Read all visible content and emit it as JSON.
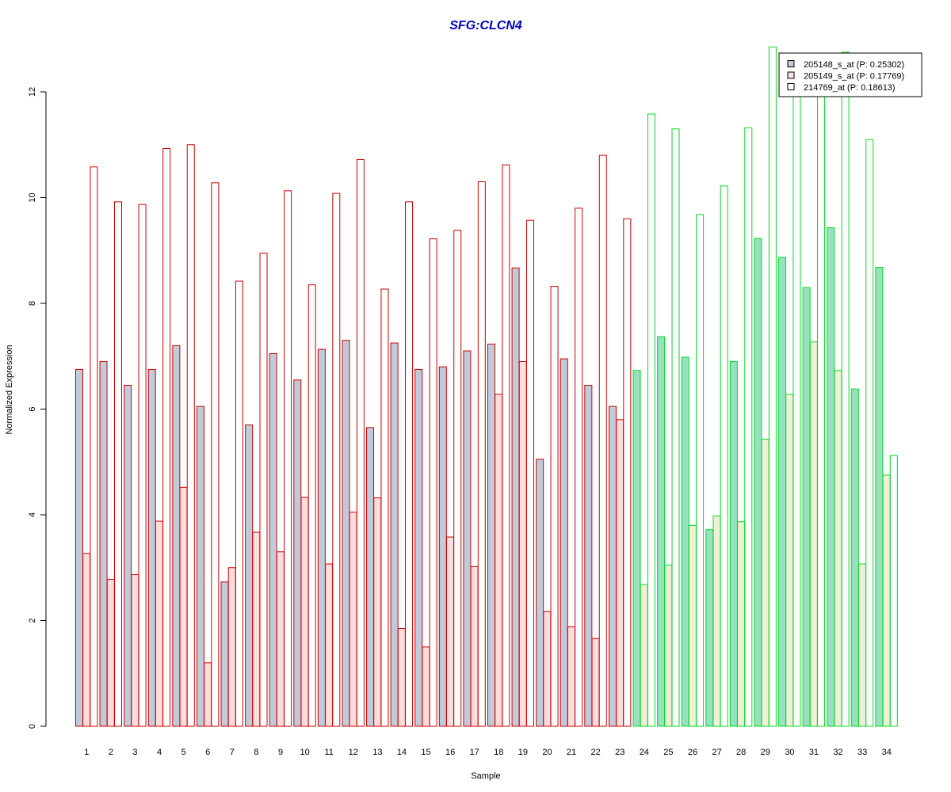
{
  "chart_data": {
    "type": "bar",
    "title": "SFG:CLCN4",
    "xlabel": "Sample",
    "ylabel": "Normalized Expression",
    "ylim": [
      0,
      13
    ],
    "yticks": [
      0,
      2,
      4,
      6,
      8,
      10,
      12
    ],
    "grid": false,
    "legend_position": "top-right",
    "categories": [
      "1",
      "2",
      "3",
      "4",
      "5",
      "6",
      "7",
      "8",
      "9",
      "10",
      "11",
      "12",
      "13",
      "14",
      "15",
      "16",
      "17",
      "18",
      "19",
      "20",
      "21",
      "22",
      "23",
      "24",
      "25",
      "26",
      "27",
      "28",
      "29",
      "30",
      "31",
      "32",
      "33",
      "34"
    ],
    "group_split_after": 23,
    "group_colors": {
      "group1": {
        "stroke": "#cc0000",
        "fills": [
          "#bfcbdb",
          "#ffdddd",
          "#ffffff"
        ]
      },
      "group2": {
        "stroke": "#00dd22",
        "fills": [
          "#99e0c0",
          "#f0f0d8",
          "#ffffff"
        ]
      }
    },
    "series": [
      {
        "name": "205148_s_at (P: 0.25302)",
        "legend_fill": "#bfcbdb",
        "values": [
          6.75,
          6.9,
          6.45,
          6.75,
          7.2,
          6.05,
          2.73,
          5.7,
          7.05,
          6.55,
          7.13,
          7.3,
          5.65,
          7.25,
          6.75,
          6.8,
          7.1,
          7.23,
          8.67,
          5.05,
          6.95,
          6.45,
          6.05,
          6.73,
          7.37,
          6.98,
          3.72,
          6.9,
          9.23,
          8.87,
          8.3,
          9.43,
          6.38,
          8.68
        ]
      },
      {
        "name": "205149_s_at (P: 0.17769)",
        "legend_fill": "#ffdddd",
        "values": [
          3.27,
          2.78,
          2.87,
          3.88,
          4.52,
          1.2,
          3.0,
          3.67,
          3.3,
          4.33,
          3.07,
          4.05,
          4.32,
          1.85,
          1.5,
          3.58,
          3.02,
          6.28,
          6.9,
          2.17,
          1.88,
          1.66,
          5.8,
          2.68,
          3.05,
          3.8,
          3.98,
          3.87,
          5.43,
          6.28,
          7.27,
          6.73,
          3.07,
          4.75
        ]
      },
      {
        "name": "214769_at (P: 0.18613)",
        "legend_fill": "#ffffff",
        "values": [
          10.58,
          9.92,
          9.87,
          10.93,
          11.0,
          10.28,
          8.42,
          8.95,
          10.13,
          8.35,
          10.08,
          10.72,
          8.27,
          9.92,
          9.22,
          9.38,
          10.3,
          10.62,
          9.57,
          8.32,
          9.8,
          10.8,
          9.6,
          11.58,
          11.3,
          9.68,
          10.22,
          11.32,
          12.85,
          12.0,
          12.0,
          12.75,
          11.1,
          5.12
        ]
      }
    ]
  }
}
